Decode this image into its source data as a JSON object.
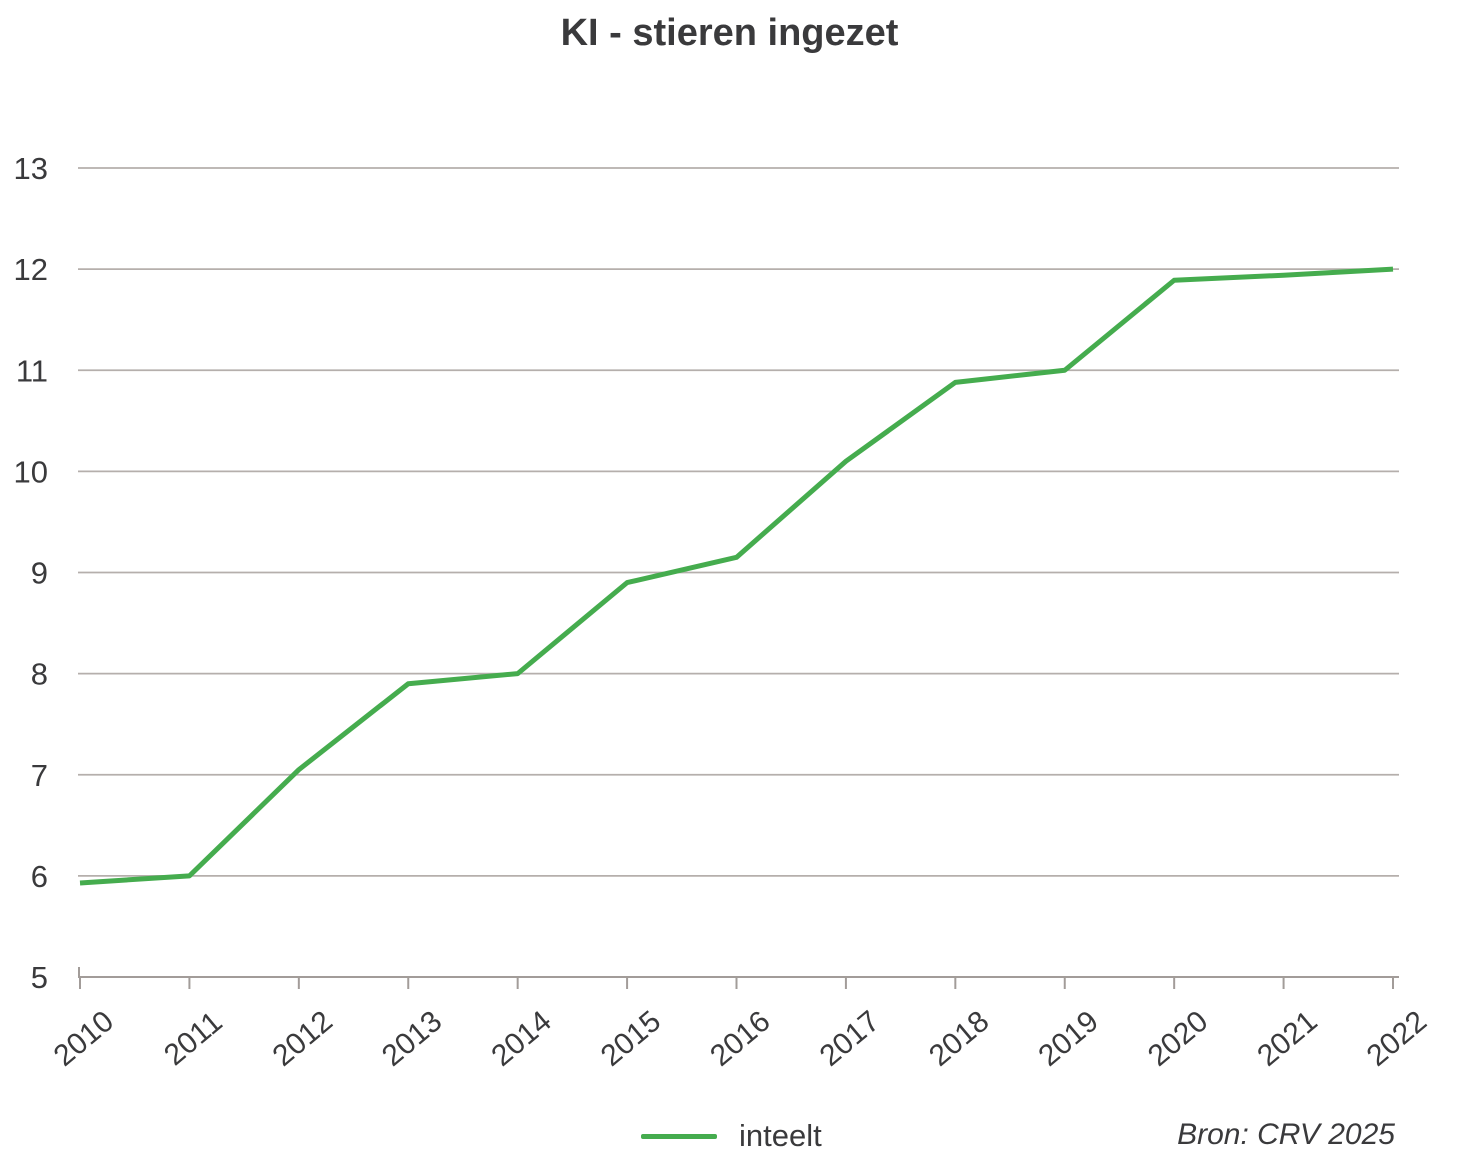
{
  "title": "KI - stieren ingezet",
  "legend": {
    "label": "inteelt"
  },
  "source": "Bron: CRV 2025",
  "colors": {
    "line": "#45ac4e",
    "grid": "#b5afac",
    "axis": "#a29c99",
    "text": "#3a3a3c",
    "background": "#ffffff"
  },
  "chart_data": {
    "type": "line",
    "title": "KI - stieren ingezet",
    "x": [
      "2010",
      "2011",
      "2012",
      "2013",
      "2014",
      "2015",
      "2016",
      "2017",
      "2018",
      "2019",
      "2020",
      "2021",
      "2022"
    ],
    "series": [
      {
        "name": "inteelt",
        "values": [
          5.93,
          6.0,
          7.05,
          7.9,
          8.0,
          8.9,
          9.15,
          10.1,
          10.88,
          11.0,
          11.89,
          11.94,
          12.0
        ]
      }
    ],
    "xlabel": "",
    "ylabel": "",
    "ylim": [
      5,
      13
    ],
    "yticks": [
      5,
      6,
      7,
      8,
      9,
      10,
      11,
      12,
      13
    ],
    "grid": true,
    "grid_axis": "y",
    "legend_position": "bottom",
    "x_tick_label_rotation": -40
  }
}
